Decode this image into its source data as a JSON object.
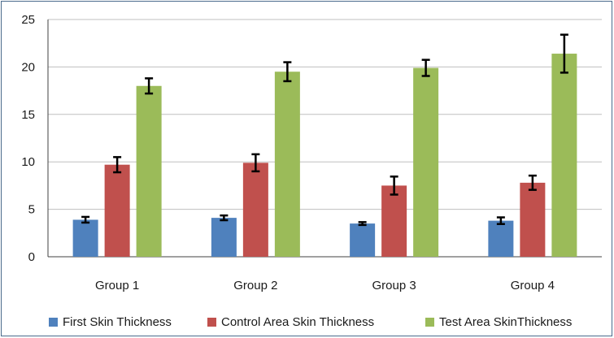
{
  "chart_data": {
    "type": "bar",
    "title": "",
    "xlabel": "",
    "ylabel": "",
    "ylim": [
      0,
      25
    ],
    "yticks": [
      0,
      5,
      10,
      15,
      20,
      25
    ],
    "grid": true,
    "legend_position": "bottom",
    "categories": [
      "Group 1",
      "Group 2",
      "Group 3",
      "Group 4"
    ],
    "series": [
      {
        "name": "First Skin Thickness",
        "color": "#4f81bd",
        "values": [
          3.9,
          4.1,
          3.5,
          3.8
        ],
        "errors": [
          0.3,
          0.25,
          0.15,
          0.35
        ]
      },
      {
        "name": "Control Area Skin Thickness",
        "color": "#c0504d",
        "values": [
          9.7,
          9.9,
          7.5,
          7.8
        ],
        "errors": [
          0.8,
          0.9,
          0.95,
          0.75
        ]
      },
      {
        "name": "Test Area SkinThickness",
        "color": "#9bbb59",
        "values": [
          18.0,
          19.5,
          19.9,
          21.4
        ],
        "errors": [
          0.8,
          1.0,
          0.85,
          2.0
        ]
      }
    ]
  }
}
